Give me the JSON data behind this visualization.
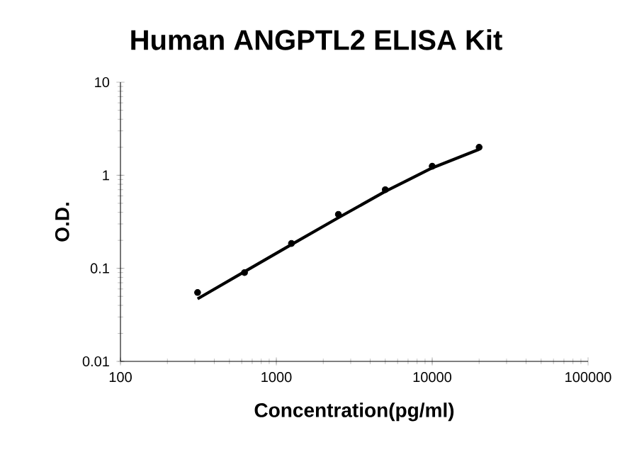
{
  "chart_data": {
    "type": "scatter",
    "title": "Human ANGPTL2 ELISA Kit",
    "xlabel": "Concentration(pg/ml)",
    "ylabel": "O.D.",
    "log": "xy",
    "xlim": [
      100,
      100000
    ],
    "ylim": [
      0.01,
      10
    ],
    "xticks": [
      100,
      1000,
      10000,
      100000
    ],
    "yticks": [
      0.01,
      0.1,
      1,
      10
    ],
    "grid": false,
    "series": [
      {
        "marker": "circle",
        "color": "#000000",
        "x": [
          312.5,
          625,
          1250,
          2500,
          5000,
          10000,
          20000
        ],
        "values": [
          0.055,
          0.09,
          0.185,
          0.38,
          0.7,
          1.25,
          2.0
        ]
      },
      {
        "type": "line",
        "marker": "none",
        "line_style": "solid",
        "color": "#000000",
        "x": [
          312.5,
          625,
          1250,
          2500,
          5000,
          10000,
          20000
        ],
        "values": [
          0.047,
          0.092,
          0.18,
          0.35,
          0.67,
          1.2,
          1.9
        ]
      }
    ]
  }
}
